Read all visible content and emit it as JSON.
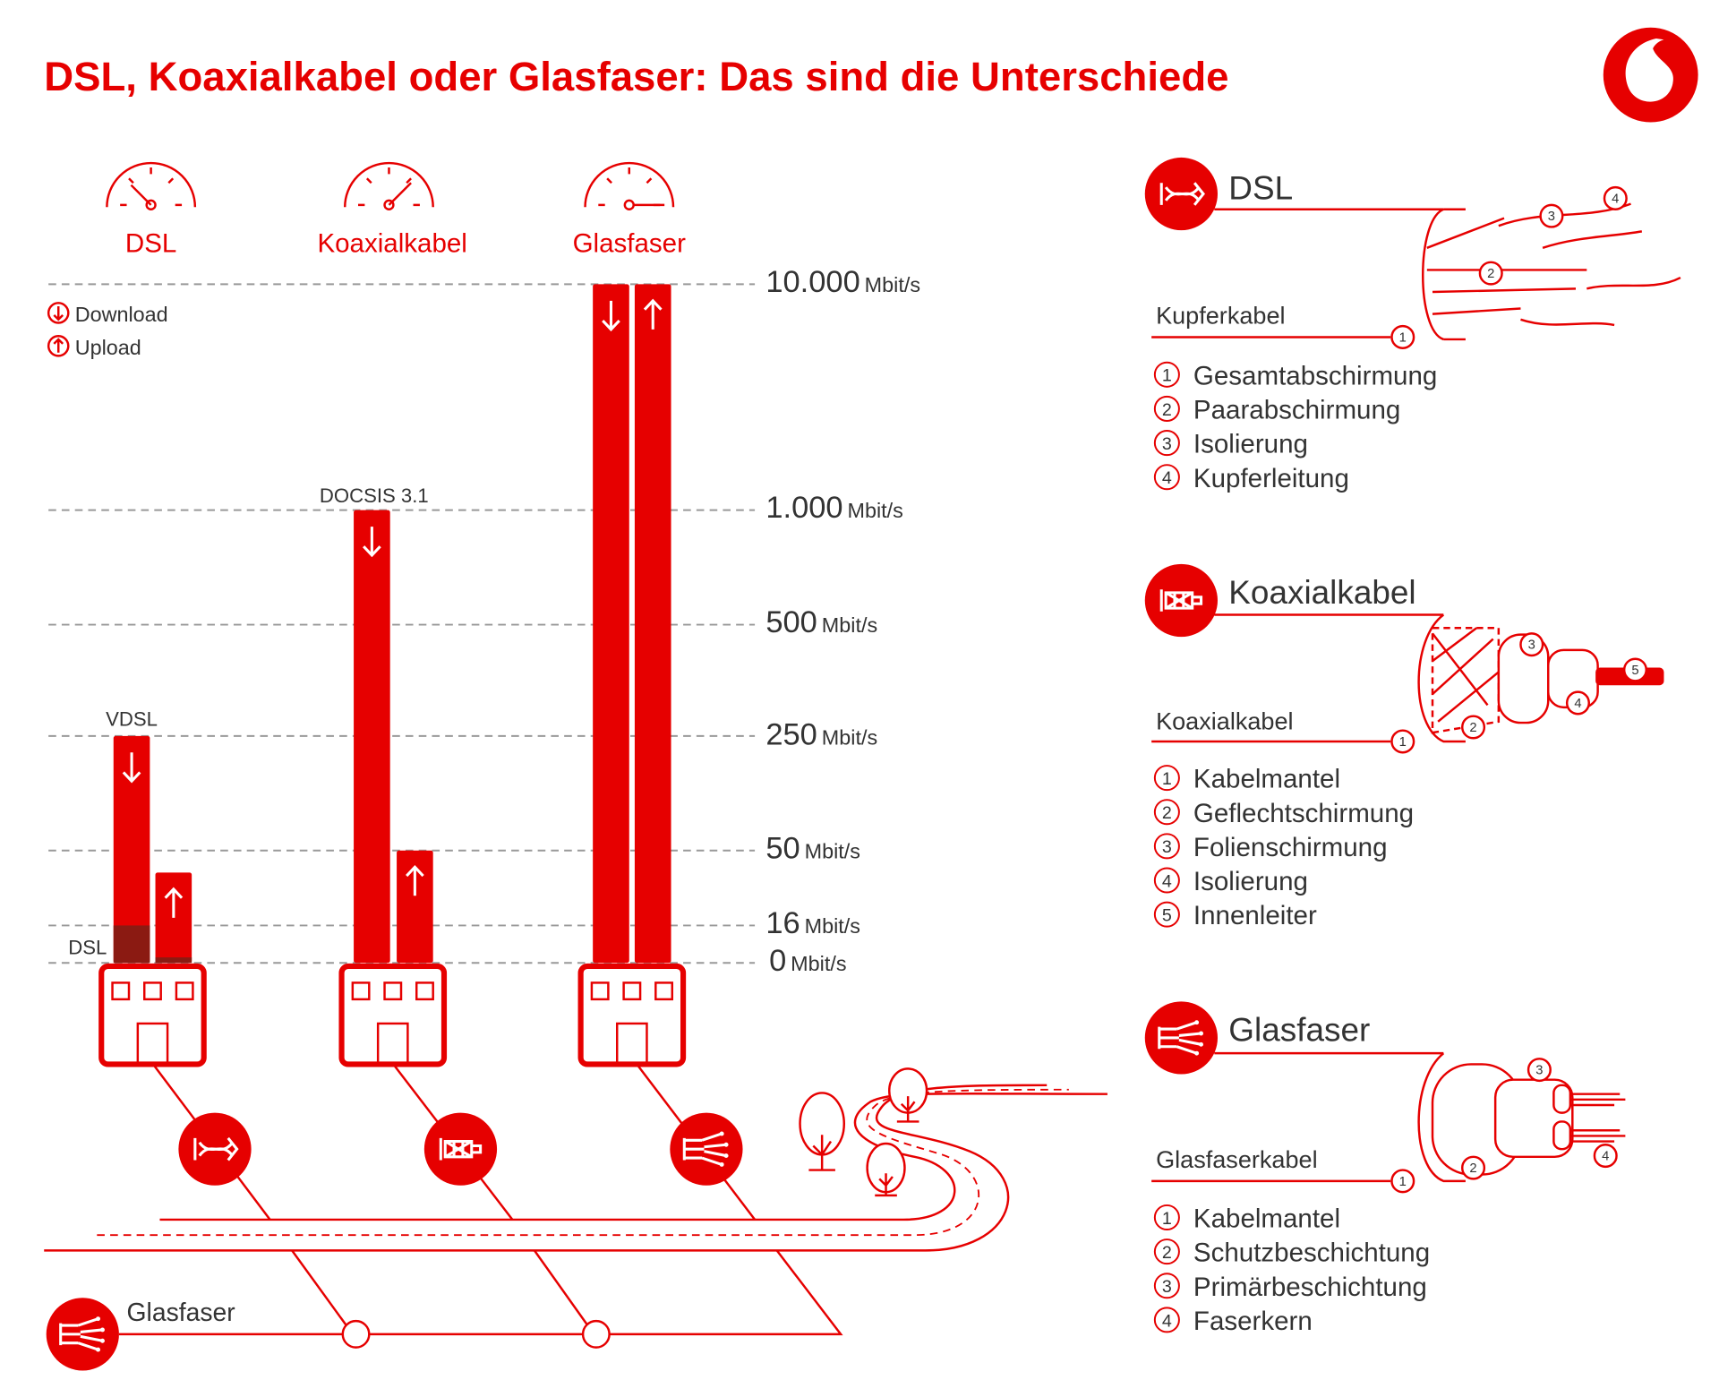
{
  "title": "DSL, Koaxialkabel oder Glasfaser: Das sind die Unterschiede",
  "colors": {
    "brand": "#e60000",
    "legacy_dsl": "#8b1a12",
    "grid": "#999999"
  },
  "logo": "vodafone-logo",
  "gauges": [
    "DSL",
    "Koaxialkabel",
    "Glasfaser"
  ],
  "legend": {
    "download": "Download",
    "upload": "Upload"
  },
  "chart_data": {
    "type": "bar",
    "ylabel_unit": "Mbit/s",
    "y_ticks": [
      {
        "value": "10.000",
        "unit": "Mbit/s"
      },
      {
        "value": "1.000",
        "unit": "Mbit/s"
      },
      {
        "value": "500",
        "unit": "Mbit/s"
      },
      {
        "value": "250",
        "unit": "Mbit/s"
      },
      {
        "value": "50",
        "unit": "Mbit/s"
      },
      {
        "value": "16",
        "unit": "Mbit/s"
      },
      {
        "value": "0",
        "unit": "Mbit/s"
      }
    ],
    "categories": [
      "DSL",
      "Koaxialkabel",
      "Glasfaser"
    ],
    "series": [
      {
        "name": "Download",
        "values": [
          250,
          1000,
          10000
        ]
      },
      {
        "name": "Upload",
        "values": [
          40,
          50,
          10000
        ]
      }
    ],
    "annotations": {
      "vdsl": "VDSL",
      "dsl": "DSL",
      "docsis": "DOCSIS 3.1"
    },
    "dsl_legacy": {
      "download": 16,
      "upload": 1
    }
  },
  "network": {
    "backbone_label": "Glasfaser"
  },
  "cables": [
    {
      "title": "DSL",
      "cable_label": "Kupferkabel",
      "parts": [
        "Gesamtabschirmung",
        "Paarabschirmung",
        "Isolierung",
        "Kupferleitung"
      ]
    },
    {
      "title": "Koaxialkabel",
      "cable_label": "Koaxialkabel",
      "parts": [
        "Kabelmantel",
        "Geflechtschirmung",
        "Folienschirmung",
        "Isolierung",
        "Innenleiter"
      ]
    },
    {
      "title": "Glasfaser",
      "cable_label": "Glasfaserkabel",
      "parts": [
        "Kabelmantel",
        "Schutzbeschichtung",
        "Primärbeschichtung",
        "Faserkern"
      ]
    }
  ],
  "numbers": [
    "1",
    "2",
    "3",
    "4",
    "5"
  ]
}
